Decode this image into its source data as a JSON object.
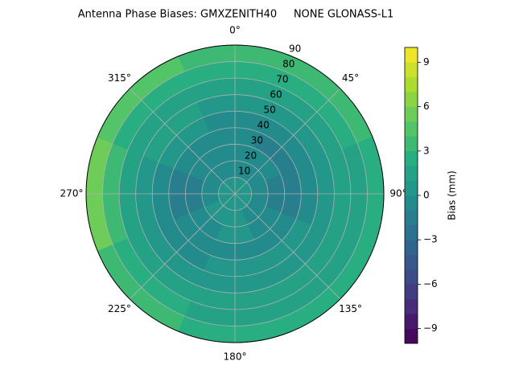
{
  "chart_data": {
    "type": "polar-contour",
    "title": "Antenna Phase Biases: GMXZENITH40     NONE GLONASS-L1",
    "colormap": "viridis",
    "colorbar_label": "Bias (mm)",
    "clim": [
      -10,
      10
    ],
    "levels": [
      -10,
      -9,
      -8,
      -7,
      -6,
      -5,
      -4,
      -3,
      -2,
      -1,
      0,
      1,
      2,
      3,
      4,
      5,
      6,
      7,
      8,
      9,
      10
    ],
    "cticks": [
      {
        "value": -9,
        "label": "−9"
      },
      {
        "value": -6,
        "label": "−6"
      },
      {
        "value": -3,
        "label": "−3"
      },
      0,
      3,
      6,
      9
    ],
    "rlim": [
      0,
      90
    ],
    "rticks": [
      10,
      20,
      30,
      40,
      50,
      60,
      70,
      80,
      90
    ],
    "thetaticks": [
      {
        "value": 0,
        "label": "0°"
      },
      {
        "value": 45,
        "label": "45°"
      },
      {
        "value": 90,
        "label": "90°"
      },
      {
        "value": 135,
        "label": "135°"
      },
      {
        "value": 180,
        "label": "180°"
      },
      {
        "value": 225,
        "label": "225°"
      },
      {
        "value": 270,
        "label": "270°"
      },
      {
        "value": 315,
        "label": "315°"
      }
    ],
    "grid": true,
    "series": [
      {
        "azimuth": 0,
        "values": [
          0,
          -1,
          -1,
          -1,
          -1,
          0,
          1,
          2,
          3
        ]
      },
      {
        "azimuth": 45,
        "values": [
          0,
          -1,
          -1,
          -2,
          -1,
          0,
          1,
          2,
          3
        ]
      },
      {
        "azimuth": 90,
        "values": [
          0,
          -1,
          -2,
          -2,
          -1,
          0,
          1,
          1,
          2
        ]
      },
      {
        "azimuth": 135,
        "values": [
          0,
          -1,
          -1,
          -1,
          0,
          0,
          1,
          1,
          2
        ]
      },
      {
        "azimuth": 180,
        "values": [
          0,
          0,
          0,
          -1,
          0,
          0,
          1,
          1,
          2
        ]
      },
      {
        "azimuth": 225,
        "values": [
          0,
          0,
          -1,
          -1,
          -1,
          0,
          1,
          2,
          3
        ]
      },
      {
        "azimuth": 270,
        "values": [
          0,
          -1,
          -2,
          -2,
          -1,
          0,
          1,
          3,
          5
        ]
      },
      {
        "azimuth": 315,
        "values": [
          0,
          -1,
          -1,
          -1,
          0,
          1,
          1,
          2,
          4
        ]
      }
    ]
  }
}
